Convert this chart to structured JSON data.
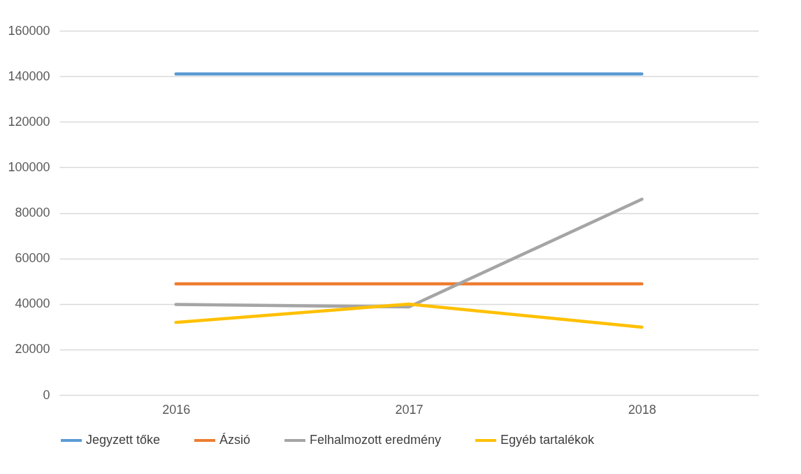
{
  "chart_data": {
    "type": "line",
    "categories": [
      "2016",
      "2017",
      "2018"
    ],
    "series": [
      {
        "name": "Jegyzett tőke",
        "color": "#5b9bd5",
        "values": [
          141000,
          141000,
          141000
        ]
      },
      {
        "name": "Ázsió",
        "color": "#ed7d31",
        "values": [
          48800,
          48800,
          48800
        ]
      },
      {
        "name": "Felhalmozott eredmény",
        "color": "#a5a5a5",
        "values": [
          39800,
          38700,
          86000
        ]
      },
      {
        "name": "Egyéb tartalékok",
        "color": "#ffc000",
        "values": [
          31900,
          39900,
          29800
        ]
      }
    ],
    "ylim": [
      0,
      160000
    ],
    "yticks": [
      0,
      20000,
      40000,
      60000,
      80000,
      100000,
      120000,
      140000,
      160000
    ],
    "grid": "y",
    "legend": "bottom",
    "marker": "none",
    "line_style": "solid"
  }
}
